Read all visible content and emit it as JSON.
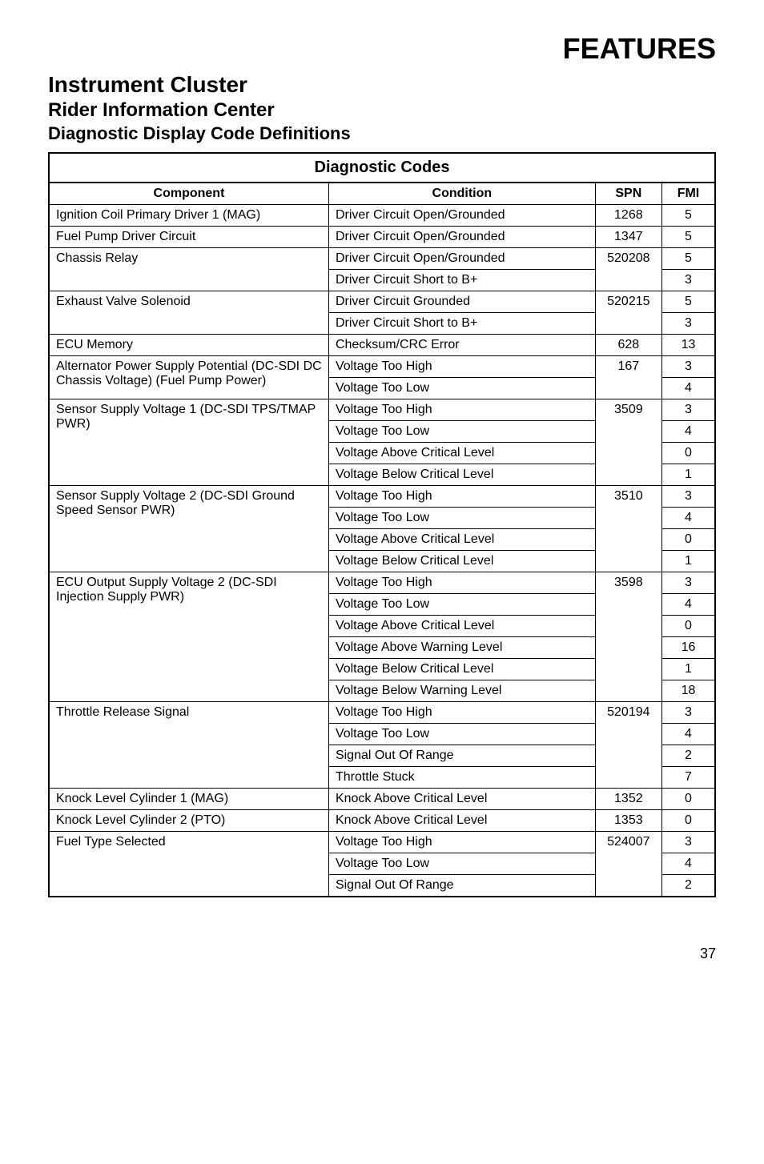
{
  "page_title": "FEATURES",
  "h1": "Instrument Cluster",
  "h2": "Rider Information Center",
  "h3": "Diagnostic Display Code Definitions",
  "table_title": "Diagnostic Codes",
  "headers": {
    "component": "Component",
    "condition": "Condition",
    "spn": "SPN",
    "fmi": "FMI"
  },
  "rows": [
    {
      "component": "Ignition Coil Primary Driver 1 (MAG)",
      "condition": "Driver Circuit Open/Grounded",
      "spn": "1268",
      "fmi": "5",
      "comp_rowspan": 1,
      "spn_rowspan": 1
    },
    {
      "component": "Fuel Pump Driver Circuit",
      "condition": "Driver Circuit Open/Grounded",
      "spn": "1347",
      "fmi": "5",
      "comp_rowspan": 1,
      "spn_rowspan": 1
    },
    {
      "component": "Chassis Relay",
      "condition": "Driver Circuit Open/Grounded",
      "spn": "520208",
      "fmi": "5",
      "comp_rowspan": 2,
      "spn_rowspan": 2
    },
    {
      "condition": "Driver Circuit Short to B+",
      "fmi": "3"
    },
    {
      "component": "Exhaust Valve Solenoid",
      "condition": "Driver Circuit Grounded",
      "spn": "520215",
      "fmi": "5",
      "comp_rowspan": 2,
      "spn_rowspan": 2
    },
    {
      "condition": "Driver Circuit Short to B+",
      "fmi": "3"
    },
    {
      "component": "ECU Memory",
      "condition": "Checksum/CRC Error",
      "spn": "628",
      "fmi": "13",
      "comp_rowspan": 1,
      "spn_rowspan": 1
    },
    {
      "component": "Alternator Power Supply Potential (DC-SDI DC Chassis Voltage) (Fuel Pump Power)",
      "condition": "Voltage Too High",
      "spn": "167",
      "fmi": "3",
      "comp_rowspan": 2,
      "spn_rowspan": 2
    },
    {
      "condition": "Voltage Too Low",
      "fmi": "4"
    },
    {
      "component": "Sensor Supply Voltage 1 (DC-SDI TPS/TMAP PWR)",
      "condition": "Voltage Too High",
      "spn": "3509",
      "fmi": "3",
      "comp_rowspan": 4,
      "spn_rowspan": 4
    },
    {
      "condition": "Voltage Too Low",
      "fmi": "4"
    },
    {
      "condition": "Voltage Above Critical Level",
      "fmi": "0"
    },
    {
      "condition": "Voltage Below Critical Level",
      "fmi": "1"
    },
    {
      "component": "Sensor Supply Voltage 2 (DC-SDI Ground Speed Sensor PWR)",
      "condition": "Voltage Too High",
      "spn": "3510",
      "fmi": "3",
      "comp_rowspan": 4,
      "spn_rowspan": 4
    },
    {
      "condition": "Voltage Too Low",
      "fmi": "4"
    },
    {
      "condition": "Voltage Above Critical Level",
      "fmi": "0"
    },
    {
      "condition": "Voltage Below Critical Level",
      "fmi": "1"
    },
    {
      "component": "ECU Output Supply Voltage 2 (DC-SDI Injection Supply PWR)",
      "condition": "Voltage Too High",
      "spn": "3598",
      "fmi": "3",
      "comp_rowspan": 6,
      "spn_rowspan": 6
    },
    {
      "condition": "Voltage Too Low",
      "fmi": "4"
    },
    {
      "condition": "Voltage Above Critical Level",
      "fmi": "0"
    },
    {
      "condition": "Voltage Above Warning Level",
      "fmi": "16"
    },
    {
      "condition": "Voltage Below Critical Level",
      "fmi": "1"
    },
    {
      "condition": "Voltage Below Warning Level",
      "fmi": "18"
    },
    {
      "component": "Throttle Release Signal",
      "condition": "Voltage Too High",
      "spn": "520194",
      "fmi": "3",
      "comp_rowspan": 4,
      "spn_rowspan": 4
    },
    {
      "condition": "Voltage Too Low",
      "fmi": "4"
    },
    {
      "condition": "Signal Out Of Range",
      "fmi": "2"
    },
    {
      "condition": "Throttle Stuck",
      "fmi": "7"
    },
    {
      "component": "Knock Level Cylinder 1 (MAG)",
      "condition": "Knock Above Critical Level",
      "spn": "1352",
      "fmi": "0",
      "comp_rowspan": 1,
      "spn_rowspan": 1
    },
    {
      "component": "Knock Level Cylinder 2 (PTO)",
      "condition": "Knock Above Critical Level",
      "spn": "1353",
      "fmi": "0",
      "comp_rowspan": 1,
      "spn_rowspan": 1
    },
    {
      "component": "Fuel Type Selected",
      "condition": "Voltage Too High",
      "spn": "524007",
      "fmi": "3",
      "comp_rowspan": 3,
      "spn_rowspan": 3
    },
    {
      "condition": "Voltage Too Low",
      "fmi": "4"
    },
    {
      "condition": "Signal Out Of Range",
      "fmi": "2"
    }
  ],
  "page_number": "37"
}
